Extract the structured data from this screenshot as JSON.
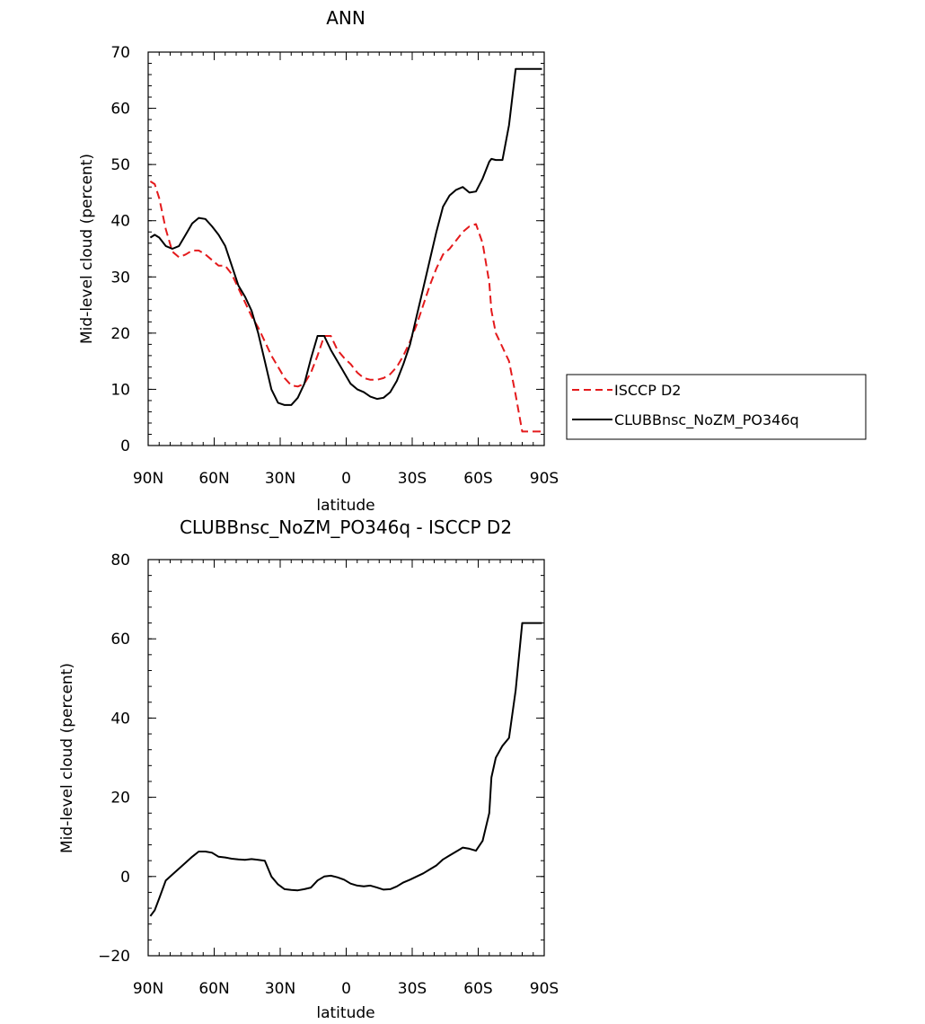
{
  "chart_data": [
    {
      "type": "line",
      "title": "ANN",
      "xlabel": "latitude",
      "ylabel": "Mid-level cloud (percent)",
      "xlim": [
        90,
        -90
      ],
      "ylim": [
        0,
        70
      ],
      "yticks": [
        0,
        10,
        20,
        30,
        40,
        50,
        60,
        70
      ],
      "xticks": [
        {
          "value": 90,
          "label": "90N"
        },
        {
          "value": 60,
          "label": "60N"
        },
        {
          "value": 30,
          "label": "30N"
        },
        {
          "value": 0,
          "label": "0"
        },
        {
          "value": -30,
          "label": "30S"
        },
        {
          "value": -60,
          "label": "60S"
        },
        {
          "value": -90,
          "label": "90S"
        }
      ],
      "legend_position": "right",
      "series": [
        {
          "name": "ISCCP D2",
          "color": "#e41a1c",
          "dash": "dashed",
          "x": [
            89,
            87,
            85,
            82,
            79,
            76,
            73,
            70,
            67,
            64,
            61,
            58,
            55,
            52,
            49,
            46,
            43,
            40,
            37,
            34,
            31,
            28,
            25,
            22,
            19,
            16,
            13,
            10,
            7,
            4,
            1,
            -2,
            -5,
            -8,
            -11,
            -14,
            -17,
            -20,
            -23,
            -26,
            -29,
            -32,
            -35,
            -38,
            -41,
            -44,
            -47,
            -50,
            -53,
            -56,
            -59,
            -62,
            -65,
            -66,
            -68,
            -71,
            -74,
            -77,
            -80,
            -83,
            -86,
            -89
          ],
          "y": [
            47,
            46.5,
            44,
            38.5,
            34.5,
            33.5,
            34,
            34.7,
            34.7,
            34,
            33,
            32,
            32,
            30.5,
            28,
            25.5,
            23,
            21,
            18.5,
            16,
            14,
            12,
            10.7,
            10.5,
            11,
            13,
            16,
            19.5,
            19.5,
            17,
            15.6,
            14.5,
            13,
            12,
            11.7,
            11.7,
            12,
            12.7,
            14,
            16,
            18.5,
            21.5,
            25,
            28.5,
            31.5,
            34,
            35,
            36.5,
            38,
            39,
            39.4,
            36,
            29,
            24,
            20,
            17.5,
            15,
            9,
            2.5,
            2.5,
            2.5,
            2.5
          ]
        },
        {
          "name": "CLUBBnsc_NoZM_PO346q",
          "color": "#000000",
          "dash": "solid",
          "x": [
            89,
            87,
            85,
            82,
            79,
            76,
            73,
            70,
            67,
            64,
            61,
            58,
            55,
            52,
            49,
            46,
            43,
            40,
            37,
            34,
            31,
            28,
            25,
            22,
            19,
            16,
            13,
            10,
            7,
            4,
            1,
            -2,
            -5,
            -8,
            -11,
            -14,
            -17,
            -20,
            -23,
            -26,
            -29,
            -32,
            -35,
            -38,
            -41,
            -44,
            -47,
            -50,
            -53,
            -56,
            -59,
            -62,
            -65,
            -66,
            -68,
            -71,
            -74,
            -77,
            -80,
            -83,
            -86,
            -89
          ],
          "y": [
            37,
            37.5,
            37,
            35.5,
            35,
            35.5,
            37.5,
            39.5,
            40.5,
            40.3,
            39,
            37.5,
            35.5,
            32,
            28.5,
            26.5,
            24,
            20,
            15,
            10,
            7.6,
            7.2,
            7.2,
            8.5,
            11,
            15.5,
            19.5,
            19.5,
            17,
            15,
            13,
            11,
            10,
            9.5,
            8.7,
            8.3,
            8.5,
            9.5,
            11.5,
            14.5,
            18,
            23,
            28,
            33,
            38,
            42.5,
            44.5,
            45.5,
            46,
            45,
            45.2,
            47.5,
            50.5,
            51,
            50.8,
            50.8,
            57,
            67,
            67,
            67,
            67,
            67
          ]
        }
      ]
    },
    {
      "type": "line",
      "title": "CLUBBnsc_NoZM_PO346q - ISCCP D2",
      "xlabel": "latitude",
      "ylabel": "Mid-level cloud (percent)",
      "xlim": [
        90,
        -90
      ],
      "ylim": [
        -20,
        80
      ],
      "yticks": [
        -20,
        0,
        20,
        40,
        60,
        80
      ],
      "xticks": [
        {
          "value": 90,
          "label": "90N"
        },
        {
          "value": 60,
          "label": "60N"
        },
        {
          "value": 30,
          "label": "30N"
        },
        {
          "value": 0,
          "label": "0"
        },
        {
          "value": -30,
          "label": "30S"
        },
        {
          "value": -60,
          "label": "60S"
        },
        {
          "value": -90,
          "label": "90S"
        }
      ],
      "series": [
        {
          "color": "#000000",
          "dash": "solid",
          "x": [
            89,
            87,
            85,
            82,
            79,
            76,
            73,
            70,
            67,
            64,
            61,
            58,
            55,
            52,
            49,
            46,
            43,
            40,
            37,
            34,
            31,
            28,
            25,
            22,
            19,
            16,
            13,
            10,
            7,
            4,
            1,
            -2,
            -5,
            -8,
            -11,
            -14,
            -17,
            -20,
            -23,
            -26,
            -29,
            -32,
            -35,
            -38,
            -41,
            -44,
            -47,
            -50,
            -53,
            -56,
            -59,
            -62,
            -65,
            -66,
            -68,
            -71,
            -74,
            -77,
            -80,
            -83,
            -86,
            -89
          ],
          "y": [
            -10,
            -8.5,
            -5.5,
            -1,
            0.5,
            2,
            3.5,
            5,
            6.3,
            6.3,
            6,
            5,
            4.8,
            4.5,
            4.3,
            4.2,
            4.4,
            4.2,
            4,
            0,
            -2,
            -3.2,
            -3.4,
            -3.5,
            -3.2,
            -2.8,
            -1,
            0,
            0.2,
            -0.2,
            -0.8,
            -1.8,
            -2.3,
            -2.5,
            -2.3,
            -2.8,
            -3.3,
            -3.2,
            -2.5,
            -1.5,
            -0.8,
            0,
            0.8,
            1.8,
            2.8,
            4.3,
            5.3,
            6.3,
            7.3,
            7,
            6.5,
            9,
            16,
            25,
            30,
            33,
            35,
            47,
            64,
            64,
            64,
            64
          ]
        }
      ]
    }
  ]
}
